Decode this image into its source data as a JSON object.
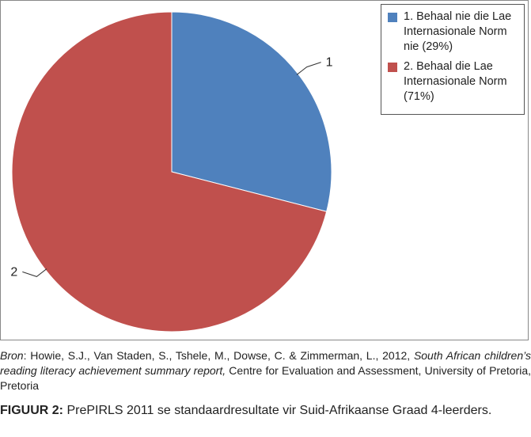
{
  "chart_data": {
    "type": "pie",
    "categories": [
      "1",
      "2"
    ],
    "values": [
      29,
      71
    ],
    "colors": [
      "#4f81bd",
      "#c0504d"
    ],
    "slice_labels": [
      "1",
      "2"
    ],
    "legend": {
      "position": "top-right",
      "entries": [
        "1. Behaal nie die Lae Internasionale Norm nie (29%)",
        "2. Behaal die Lae Internasionale Norm (71%)"
      ]
    }
  },
  "source": {
    "label": "Bron",
    "text1": ": Howie, S.J., Van Staden, S., Tshele, M., Dowse, C. & Zimmerman, L., 2012, ",
    "title_italic": "South African children’s reading literacy achievement summary report,",
    "text2": " Centre for Evaluation and Assessment, University of Pretoria, Pretoria"
  },
  "caption": {
    "label": "FIGUUR 2:",
    "text": " PrePIRLS 2011 se standaardresultate vir Suid-Afrikaanse Graad 4-leerders."
  }
}
